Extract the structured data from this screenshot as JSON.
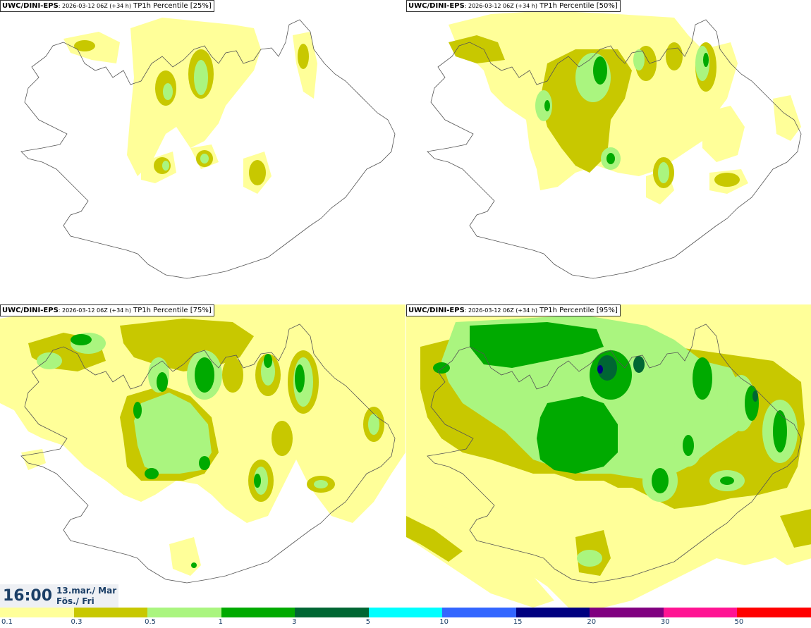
{
  "panels": [
    {
      "model": "UWC/DINI-EPS",
      "run": ": 2026-03-12 06Z (+34 h)",
      "product": " TP1h Percentile [25%]"
    },
    {
      "model": "UWC/DINI-EPS",
      "run": ": 2026-03-12 06Z (+34 h)",
      "product": " TP1h Percentile [50%]"
    },
    {
      "model": "UWC/DINI-EPS",
      "run": ": 2026-03-12 06Z (+34 h)",
      "product": " TP1h Percentile [75%]"
    },
    {
      "model": "UWC/DINI-EPS",
      "run": ": 2026-03-12 06Z (+34 h)",
      "product": " TP1h Percentile [95%]"
    }
  ],
  "valid": {
    "time": "16:00",
    "date_line1": "13.mar./ Mar",
    "date_line2": "Fös./ Fri"
  },
  "colorbar": {
    "colors": [
      "#ffff99",
      "#c8c800",
      "#aaf57f",
      "#00aa00",
      "#006633",
      "#00ffff",
      "#3366ff",
      "#000080",
      "#800080",
      "#ff1493",
      "#ff0000"
    ],
    "labels": [
      "0.1",
      "0.3",
      "0.5",
      "1",
      "3",
      "5",
      "10",
      "15",
      "20",
      "30",
      "50"
    ]
  }
}
